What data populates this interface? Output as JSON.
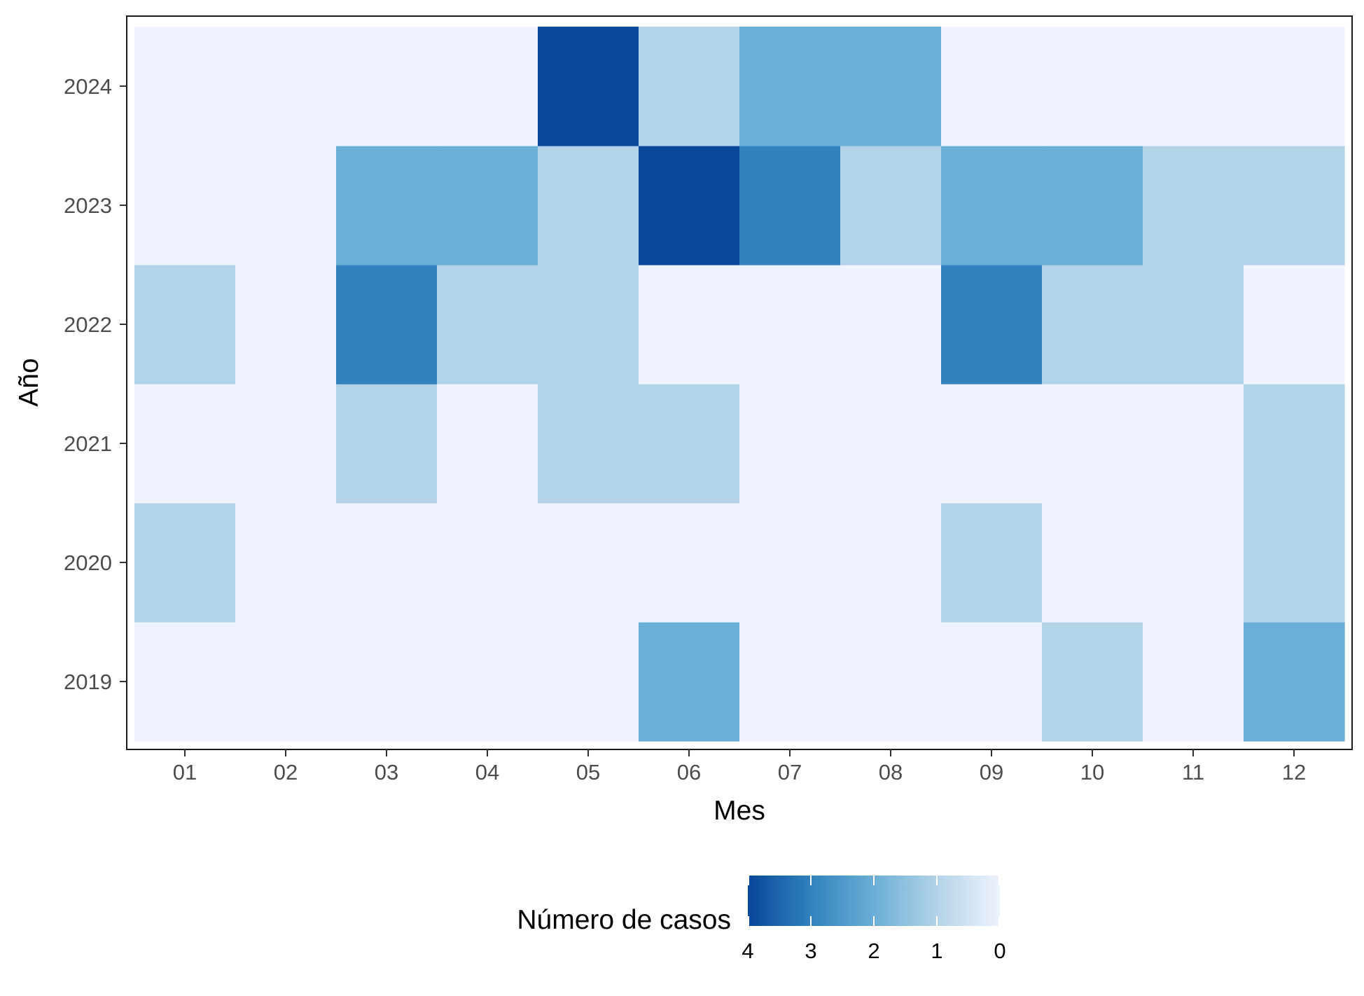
{
  "chart_data": {
    "type": "heatmap",
    "x_categories": [
      "01",
      "02",
      "03",
      "04",
      "05",
      "06",
      "07",
      "08",
      "09",
      "10",
      "11",
      "12"
    ],
    "y_categories": [
      "2019",
      "2020",
      "2021",
      "2022",
      "2023",
      "2024"
    ],
    "xlabel": "Mes",
    "ylabel": "Año",
    "values": {
      "2024": [
        0,
        0,
        0,
        0,
        4,
        1,
        2,
        2,
        0,
        0,
        0,
        0
      ],
      "2023": [
        0,
        0,
        2,
        2,
        1,
        4,
        3,
        1,
        2,
        2,
        1,
        1
      ],
      "2022": [
        1,
        0,
        3,
        1,
        1,
        0,
        0,
        0,
        3,
        1,
        1,
        0
      ],
      "2021": [
        0,
        0,
        1,
        0,
        1,
        1,
        0,
        0,
        0,
        0,
        0,
        1
      ],
      "2020": [
        1,
        0,
        0,
        0,
        0,
        0,
        0,
        0,
        1,
        0,
        0,
        1
      ],
      "2019": [
        0,
        0,
        0,
        0,
        0,
        2,
        0,
        0,
        0,
        1,
        0,
        2
      ]
    },
    "legend": {
      "title": "Número de casos",
      "position": "bottom",
      "ticks": [
        "4",
        "3",
        "2",
        "1",
        "0"
      ],
      "range": [
        0,
        4
      ]
    },
    "colors": {
      "0": "#eef3fd",
      "1": "#b3d3e8",
      "2": "#6baed6",
      "3": "#3182bd",
      "4": "#08479a"
    },
    "grid": false
  }
}
